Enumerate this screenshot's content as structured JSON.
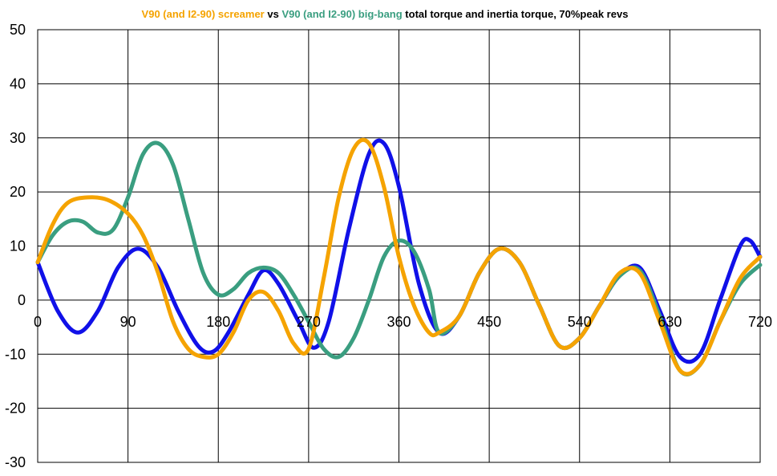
{
  "chart_data": {
    "type": "line",
    "title_segments": [
      {
        "text": "V90 (and I2-90) screamer",
        "color": "#f5a300"
      },
      {
        "text": " vs ",
        "color": "#000000"
      },
      {
        "text": "V90 (and I2-90) big-bang",
        "color": "#3a9e80"
      },
      {
        "text": " total torque and inertia torque, 70%peak revs",
        "color": "#000000"
      }
    ],
    "xlabel": "",
    "ylabel": "",
    "xlim": [
      0,
      720
    ],
    "ylim": [
      -30,
      50
    ],
    "x_ticks": [
      0,
      90,
      180,
      270,
      360,
      450,
      540,
      630,
      720
    ],
    "y_ticks": [
      -30,
      -20,
      -10,
      0,
      10,
      20,
      30,
      40,
      50
    ],
    "grid": true,
    "legend": "none",
    "series": [
      {
        "color": "#1010e8",
        "x": [
          0,
          20,
          40,
          60,
          80,
          100,
          120,
          140,
          160,
          175,
          190,
          210,
          225,
          240,
          260,
          275,
          290,
          310,
          330,
          345,
          360,
          380,
          400,
          420,
          440,
          460,
          480,
          500,
          520,
          540,
          560,
          580,
          600,
          620,
          640,
          660,
          680,
          700,
          710,
          720
        ],
        "y": [
          7,
          -2,
          -6,
          -2,
          6,
          9.5,
          6,
          -2,
          -8.5,
          -9.5,
          -6,
          1,
          5.5,
          3,
          -4,
          -8.8,
          -4,
          13,
          27,
          29,
          21,
          3,
          -6,
          -3,
          5,
          9.5,
          7,
          -1,
          -8.5,
          -7,
          -1,
          4.5,
          6,
          -2,
          -10.5,
          -10,
          0,
          10,
          11,
          8
        ]
      },
      {
        "color": "#3a9e80",
        "x": [
          0,
          15,
          30,
          45,
          60,
          75,
          90,
          105,
          120,
          135,
          150,
          165,
          180,
          195,
          210,
          225,
          240,
          255,
          270,
          285,
          300,
          315,
          330,
          345,
          360,
          375,
          390,
          400,
          420,
          440,
          460,
          480,
          500,
          520,
          540,
          560,
          580,
          600,
          620,
          640,
          660,
          680,
          700,
          720
        ],
        "y": [
          7,
          12,
          14.5,
          14.5,
          12.5,
          13,
          19,
          27,
          29,
          25,
          15,
          5,
          1,
          2,
          5,
          6,
          5,
          1,
          -4,
          -9,
          -10.5,
          -7,
          0,
          8,
          11,
          9,
          2,
          -6,
          -3,
          5,
          9.5,
          7,
          -1,
          -8.5,
          -7,
          -1,
          4.5,
          5.5,
          -3,
          -13,
          -12,
          -4,
          3,
          6.5
        ]
      },
      {
        "color": "#f5a300",
        "x": [
          0,
          15,
          30,
          50,
          70,
          90,
          105,
          120,
          135,
          150,
          165,
          180,
          195,
          210,
          225,
          240,
          255,
          270,
          285,
          300,
          315,
          330,
          345,
          360,
          375,
          390,
          400,
          420,
          440,
          460,
          480,
          500,
          520,
          540,
          560,
          580,
          600,
          620,
          640,
          660,
          680,
          700,
          720
        ],
        "y": [
          7,
          14,
          18,
          19,
          18.5,
          16,
          12,
          5,
          -4,
          -9,
          -10.5,
          -10,
          -6,
          0,
          1.5,
          -2,
          -8,
          -9,
          4,
          19,
          28,
          29,
          21,
          8,
          -1,
          -6,
          -6,
          -3,
          5,
          9.5,
          7,
          -1,
          -8.5,
          -7,
          -1,
          5,
          5,
          -4,
          -13,
          -12,
          -4,
          4,
          8
        ]
      }
    ]
  }
}
